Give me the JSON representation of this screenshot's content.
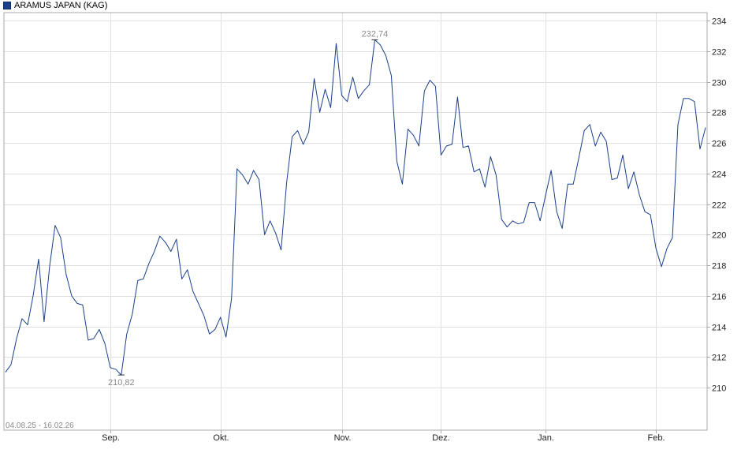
{
  "legend": {
    "label": "ARAMUS JAPAN (KAG)",
    "color": "#1a3f8c"
  },
  "chart_data": {
    "type": "line",
    "date_range_label": "04.08.25 - 16.02.26",
    "ylim": [
      208,
      234.5
    ],
    "yticks": [
      210,
      212,
      214,
      216,
      218,
      220,
      222,
      224,
      226,
      228,
      230,
      232,
      234
    ],
    "grid": true,
    "x_tick_labels": [
      {
        "label": "Sep.",
        "index": 19
      },
      {
        "label": "Okt.",
        "index": 39
      },
      {
        "label": "Nov.",
        "index": 61
      },
      {
        "label": "Dez.",
        "index": 79
      },
      {
        "label": "Jan.",
        "index": 98
      },
      {
        "label": "Feb.",
        "index": 118
      }
    ],
    "annotations": [
      {
        "label": "232,74",
        "index": 67,
        "value": 232.74,
        "position": "above"
      },
      {
        "label": "210,82",
        "index": 21,
        "value": 210.82,
        "position": "below"
      }
    ],
    "series": [
      {
        "color": "#1a3f8c",
        "values": [
          211.0,
          211.5,
          213.2,
          214.5,
          214.1,
          216.0,
          218.4,
          214.3,
          217.9,
          220.6,
          219.8,
          217.4,
          216.0,
          215.5,
          215.4,
          213.1,
          213.2,
          213.8,
          212.9,
          211.3,
          211.2,
          210.82,
          213.5,
          214.8,
          217.0,
          217.1,
          218.1,
          218.9,
          219.9,
          219.5,
          218.9,
          219.7,
          217.1,
          217.7,
          216.3,
          215.5,
          214.7,
          213.5,
          213.8,
          214.6,
          213.3,
          215.8,
          224.3,
          223.9,
          223.3,
          224.2,
          223.6,
          220.0,
          220.9,
          220.1,
          219.0,
          223.4,
          226.4,
          226.8,
          225.9,
          226.7,
          230.2,
          228.0,
          229.5,
          228.3,
          232.5,
          229.1,
          228.7,
          230.3,
          228.9,
          229.4,
          229.8,
          232.74,
          232.4,
          231.7,
          230.4,
          224.8,
          223.3,
          226.9,
          226.5,
          225.8,
          229.4,
          230.1,
          229.7,
          225.2,
          225.8,
          225.9,
          229.0,
          225.7,
          225.8,
          224.1,
          224.3,
          223.1,
          225.1,
          223.9,
          221.0,
          220.5,
          220.9,
          220.7,
          220.8,
          222.1,
          222.1,
          220.9,
          222.6,
          224.2,
          221.5,
          220.4,
          223.3,
          223.3,
          225.0,
          226.8,
          227.2,
          225.8,
          226.7,
          226.1,
          223.6,
          223.7,
          225.2,
          223.0,
          224.1,
          222.6,
          221.5,
          221.3,
          219.1,
          217.9,
          219.1,
          219.8,
          227.2,
          228.9,
          228.9,
          228.7,
          225.6,
          227.0
        ]
      }
    ]
  }
}
